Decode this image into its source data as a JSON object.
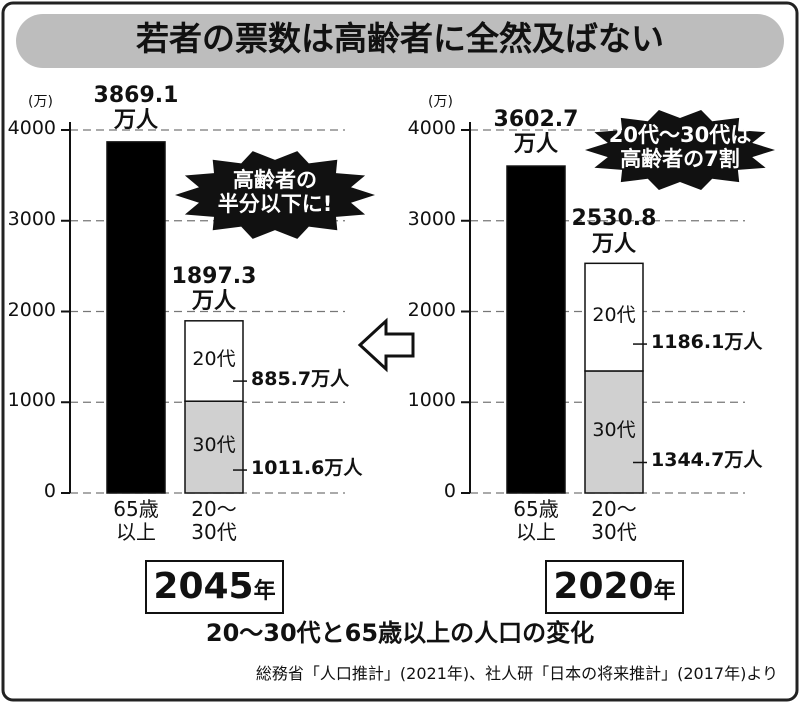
{
  "title": "若者の票数は高齢者に全然及ばない",
  "chart_data": [
    {
      "type": "stacked-bar",
      "year": "2045",
      "year_unit": "年",
      "y_unit": "(万)",
      "categories": [
        "65歳\n以上",
        "20〜\n30代"
      ],
      "series": [
        {
          "color": "#000000",
          "values": [
            3869.1,
            null
          ],
          "value_labels": [
            "3869.1\n万人",
            null
          ]
        },
        {
          "name": "30代",
          "color": "#d0d0d0",
          "values": [
            null,
            1011.6
          ],
          "value_labels": [
            null,
            "1011.6万人"
          ]
        },
        {
          "name": "20代",
          "color": "#ffffff",
          "values": [
            null,
            885.7
          ],
          "value_labels": [
            null,
            "885.7万人"
          ]
        }
      ],
      "totals": [
        null,
        1897.3
      ],
      "total_labels": [
        null,
        "1897.3\n万人"
      ],
      "ylim": [
        0,
        4000
      ],
      "yticks": [
        0,
        1000,
        2000,
        3000,
        4000
      ],
      "grid": true,
      "annotation": "高齢者の\n半分以下に!"
    },
    {
      "type": "stacked-bar",
      "year": "2020",
      "year_unit": "年",
      "y_unit": "(万)",
      "categories": [
        "65歳\n以上",
        "20〜\n30代"
      ],
      "series": [
        {
          "color": "#000000",
          "values": [
            3602.7,
            null
          ],
          "value_labels": [
            "3602.7\n万人",
            null
          ]
        },
        {
          "name": "30代",
          "color": "#d0d0d0",
          "values": [
            null,
            1344.7
          ],
          "value_labels": [
            null,
            "1344.7万人"
          ]
        },
        {
          "name": "20代",
          "color": "#ffffff",
          "values": [
            null,
            1186.1
          ],
          "value_labels": [
            null,
            "1186.1万人"
          ]
        }
      ],
      "totals": [
        null,
        2530.8
      ],
      "total_labels": [
        null,
        "2530.8\n万人"
      ],
      "ylim": [
        0,
        4000
      ],
      "yticks": [
        0,
        1000,
        2000,
        3000,
        4000
      ],
      "grid": true,
      "annotation": "20代〜30代は\n高齢者の7割"
    }
  ],
  "caption": "20〜30代と65歳以上の人口の変化",
  "source": "総務省「人口推計」(2021年)、社人研「日本の将来推計」(2017年)より"
}
